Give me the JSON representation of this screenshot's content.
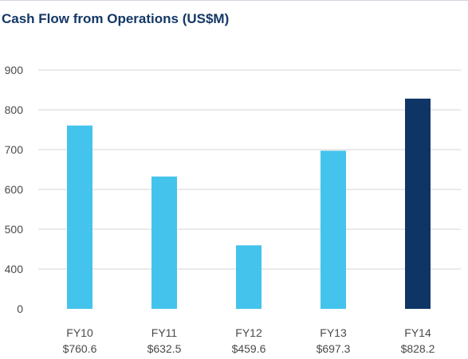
{
  "title": "Cash Flow from Operations (US$M)",
  "colors": {
    "bar": "#44c3ec",
    "highlight": "#0f3566",
    "grid": "#d6d6d6",
    "text": "#4a4a4a",
    "title": "#143866"
  },
  "chart_data": {
    "type": "bar",
    "title": "Cash Flow from Operations (US$M)",
    "categories": [
      "FY10",
      "FY11",
      "FY12",
      "FY13",
      "FY14"
    ],
    "value_labels": [
      "$760.6",
      "$632.5",
      "$459.6",
      "$697.3",
      "$828.2"
    ],
    "values": [
      760.6,
      632.5,
      459.6,
      697.3,
      828.2
    ],
    "highlight_index": 4,
    "ylim": [
      0,
      900
    ],
    "y_axis_breaks_at": 300,
    "yticks": [
      "900",
      "800",
      "700",
      "600",
      "500",
      "400",
      "0"
    ],
    "grid": true,
    "xlabel": "",
    "ylabel": ""
  }
}
